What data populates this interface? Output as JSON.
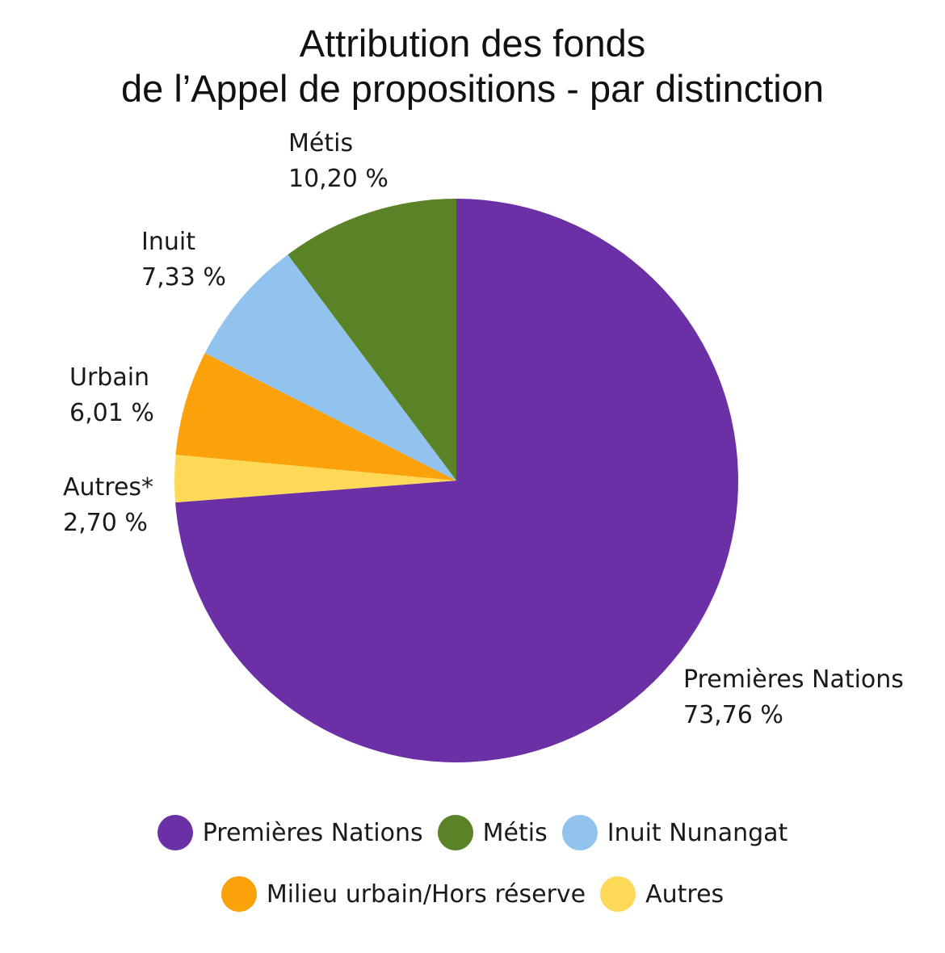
{
  "chart_data": {
    "type": "pie",
    "title": [
      "Attribution des fonds",
      "de l’Appel de propositions - par distinction"
    ],
    "slices": [
      {
        "label": "Premières Nations",
        "value_label": "73,76 %",
        "value": 73.76,
        "color": "#6b2fa6"
      },
      {
        "label": "Autres*",
        "value_label": "2,70 %",
        "value": 2.7,
        "color": "#fdd957"
      },
      {
        "label": "Urbain",
        "value_label": "6,01 %",
        "value": 6.01,
        "color": "#fba10a"
      },
      {
        "label": "Inuit",
        "value_label": "7,33 %",
        "value": 7.33,
        "color": "#92c3ee"
      },
      {
        "label": "Métis",
        "value_label": "10,20 %",
        "value": 10.2,
        "color": "#5a8327"
      }
    ],
    "legend": [
      {
        "label": "Premières Nations",
        "color": "#6b2fa6"
      },
      {
        "label": "Métis",
        "color": "#5a8327"
      },
      {
        "label": "Inuit Nunangat",
        "color": "#92c3ee"
      },
      {
        "label": "Milieu urbain/Hors réserve",
        "color": "#fba10a"
      },
      {
        "label": "Autres",
        "color": "#fdd957"
      }
    ]
  }
}
